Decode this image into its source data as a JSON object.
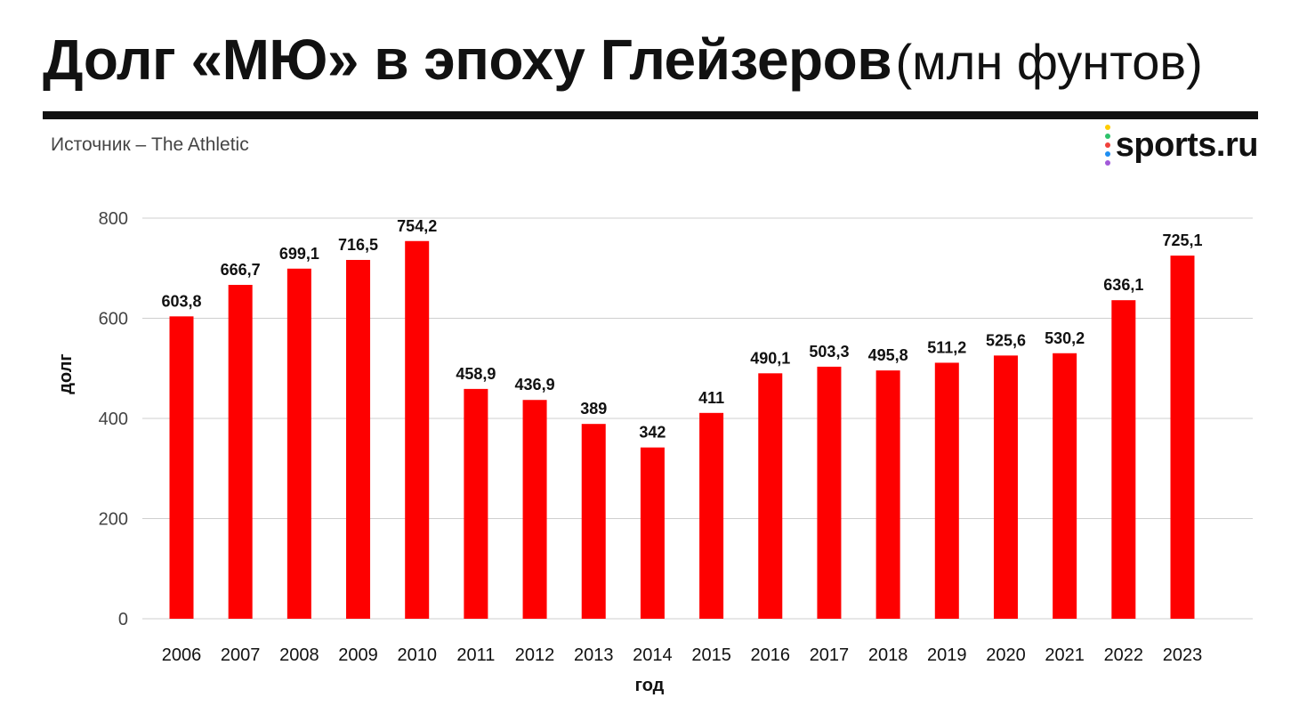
{
  "header": {
    "title": "Долг «МЮ» в эпоху Глейзеров",
    "title_unit": "(млн фунтов)",
    "source": "Источник – The Athletic",
    "logo_text": "sports.ru",
    "logo_dot_colors": [
      "#ffcc00",
      "#2ec26b",
      "#f0413b",
      "#1f8ef1",
      "#a259d9"
    ]
  },
  "colors": {
    "bar": "#fe0000",
    "grid": "#cfcfcf",
    "text": "#111111",
    "axis_text": "#444444"
  },
  "chart_data": {
    "type": "bar",
    "title": "",
    "xlabel": "год",
    "ylabel": "долг",
    "ylim": [
      0,
      800
    ],
    "yticks": [
      0,
      200,
      400,
      600,
      800
    ],
    "grid": true,
    "categories": [
      "2006",
      "2007",
      "2008",
      "2009",
      "2010",
      "2011",
      "2012",
      "2013",
      "2014",
      "2015",
      "2016",
      "2017",
      "2018",
      "2019",
      "2020",
      "2021",
      "2022",
      "2023"
    ],
    "values": [
      603.8,
      666.7,
      699.1,
      716.5,
      754.2,
      458.9,
      436.9,
      389,
      342,
      411,
      490.1,
      503.3,
      495.8,
      511.2,
      525.6,
      530.2,
      636.1,
      725.1
    ],
    "value_labels": [
      "603,8",
      "666,7",
      "699,1",
      "716,5",
      "754,2",
      "458,9",
      "436,9",
      "389",
      "342",
      "411",
      "490,1",
      "503,3",
      "495,8",
      "511,2",
      "525,6",
      "530,2",
      "636,1",
      "725,1"
    ]
  }
}
